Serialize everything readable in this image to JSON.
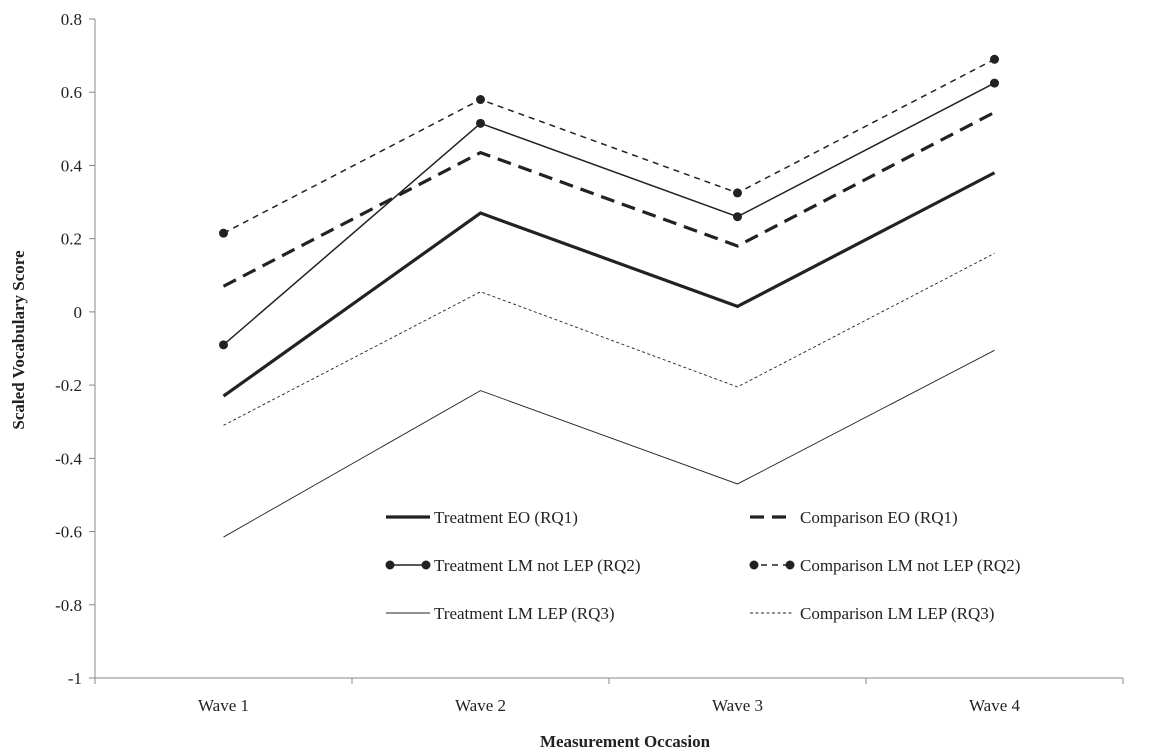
{
  "chart_data": {
    "type": "line",
    "categories": [
      "Wave 1",
      "Wave 2",
      "Wave 3",
      "Wave 4"
    ],
    "xlabel": "Measurement Occasion",
    "ylabel": "Scaled Vocabulary Score",
    "ylim": [
      -1,
      0.8
    ],
    "yticks": [
      "0.8",
      "0.6",
      "0.4",
      "0.2",
      "0",
      "-0.2",
      "-0.4",
      "-0.6",
      "-0.8",
      "-1"
    ],
    "grid": false,
    "legend_position": "bottom-center",
    "series": [
      {
        "name": "Treatment EO (RQ1)",
        "values": [
          -0.23,
          0.27,
          0.015,
          0.38
        ],
        "style": "solid-thick",
        "markers": false,
        "color": "#222222"
      },
      {
        "name": "Comparison EO (RQ1)",
        "values": [
          0.07,
          0.435,
          0.18,
          0.545
        ],
        "style": "dashed-thick",
        "markers": false,
        "color": "#222222"
      },
      {
        "name": "Treatment LM not LEP (RQ2)",
        "values": [
          -0.09,
          0.515,
          0.26,
          0.625
        ],
        "style": "solid",
        "markers": true,
        "color": "#222222"
      },
      {
        "name": "Comparison LM not LEP (RQ2)",
        "values": [
          0.215,
          0.58,
          0.325,
          0.69
        ],
        "style": "dashed",
        "markers": true,
        "color": "#222222"
      },
      {
        "name": "Treatment LM LEP (RQ3)",
        "values": [
          -0.615,
          -0.215,
          -0.47,
          -0.105
        ],
        "style": "solid-thin",
        "markers": false,
        "color": "#222222"
      },
      {
        "name": "Comparison LM LEP (RQ3)",
        "values": [
          -0.31,
          0.055,
          -0.205,
          0.16
        ],
        "style": "dotted",
        "markers": false,
        "color": "#222222"
      }
    ]
  }
}
